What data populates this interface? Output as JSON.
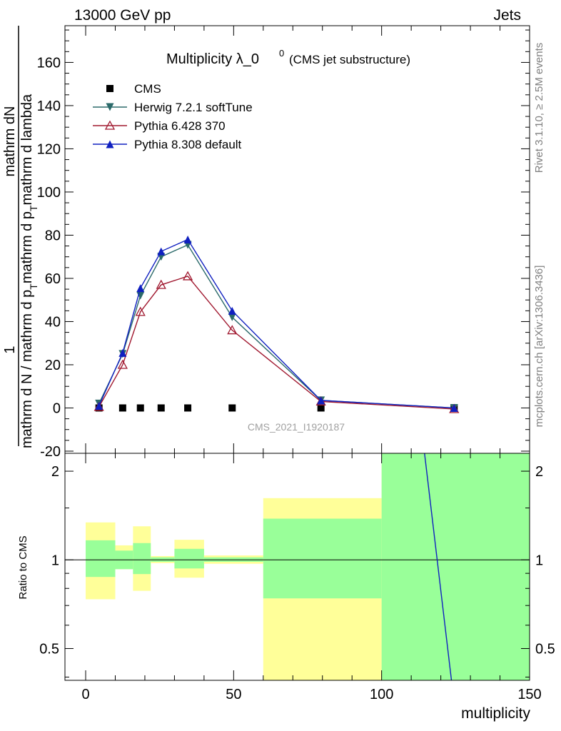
{
  "header": {
    "left": "13000 GeV pp",
    "right": "Jets"
  },
  "side_labels": {
    "rivet": "Rivet 3.1.10, ≥ 2.5M events",
    "mcplots": "mcplots.cern.ch [arXiv:1306.3436]"
  },
  "chart_data": [
    {
      "type": "line",
      "title_main": "Multiplicity λ_0",
      "title_sup": "0",
      "title_sub": "(CMS jet substructure)",
      "ylabel": "1 / mathrm d N / mathrm d p_T mathrm d p_T mathrm d lambda  mathrm dN",
      "ylabel_parts": {
        "numerator_left": "1",
        "numerator_right": "mathrm dN",
        "denominator": "mathrm d N / mathrm d p",
        "denominator_sub": "T",
        "denominator_2": "mathrm d p",
        "denominator_2_sub": "T",
        "denominator_3": "mathrm d lambda"
      },
      "xlabel": "",
      "xlim": [
        -7,
        150
      ],
      "ylim": [
        -21,
        177
      ],
      "yticks": [
        -20,
        0,
        20,
        40,
        60,
        80,
        100,
        120,
        140,
        160
      ],
      "watermark": "CMS_2021_I1920187",
      "series": [
        {
          "name": "CMS",
          "color": "#000000",
          "marker": "square",
          "x": [
            4.5,
            12.5,
            18.5,
            25.5,
            34.5,
            49.5,
            79.5,
            124.5
          ],
          "y": [
            0,
            0,
            0,
            0,
            0,
            0,
            0,
            0
          ]
        },
        {
          "name": "Herwig 7.2.1 softTune",
          "color": "#2b6a6a",
          "marker": "triangle-down",
          "x": [
            4.5,
            12.5,
            18.5,
            25.5,
            34.5,
            49.5,
            79.5,
            124.5
          ],
          "y": [
            2,
            25,
            52,
            70,
            75.5,
            42,
            3.5,
            0
          ]
        },
        {
          "name": "Pythia 6.428 370",
          "color": "#a0182f",
          "marker": "triangle-up-open",
          "x": [
            4.5,
            12.5,
            18.5,
            25.5,
            34.5,
            49.5,
            79.5,
            124.5
          ],
          "y": [
            0.5,
            20,
            44.5,
            57,
            61,
            36,
            3,
            -0.5
          ]
        },
        {
          "name": "Pythia 8.308 default",
          "color": "#1020c0",
          "marker": "triangle-up",
          "x": [
            4.5,
            12.5,
            18.5,
            25.5,
            34.5,
            49.5,
            79.5,
            124.5
          ],
          "y": [
            1,
            25.5,
            55.5,
            72.5,
            78,
            45,
            3.5,
            0
          ]
        }
      ]
    },
    {
      "type": "area",
      "ylabel": "Ratio to CMS",
      "xlabel": "multiplicity",
      "xlim": [
        -7,
        150
      ],
      "ylim": [
        0.39,
        2.3
      ],
      "yscale": "log",
      "yticks": [
        0.5,
        1,
        2
      ],
      "ytick_labels": [
        "0.5",
        "1",
        "2"
      ],
      "xticks": [
        0,
        50,
        100,
        150
      ],
      "xtick_labels": [
        "0",
        "50",
        "100",
        "150"
      ],
      "bands": [
        {
          "x0": 0,
          "x1": 10,
          "green": [
            0.875,
            1.165
          ],
          "yellow": [
            0.735,
            1.34
          ]
        },
        {
          "x0": 10,
          "x1": 16,
          "green": [
            0.93,
            1.075
          ],
          "yellow": [
            0.93,
            1.12
          ]
        },
        {
          "x0": 16,
          "x1": 22,
          "green": [
            0.895,
            1.14
          ],
          "yellow": [
            0.785,
            1.3
          ]
        },
        {
          "x0": 22,
          "x1": 30,
          "green": [
            0.985,
            1.02
          ],
          "yellow": [
            0.975,
            1.03
          ]
        },
        {
          "x0": 30,
          "x1": 40,
          "green": [
            0.935,
            1.09
          ],
          "yellow": [
            0.87,
            1.17
          ]
        },
        {
          "x0": 40,
          "x1": 60,
          "green": [
            0.985,
            1.02
          ],
          "yellow": [
            0.97,
            1.035
          ]
        },
        {
          "x0": 60,
          "x1": 100,
          "green": [
            0.74,
            1.38
          ],
          "yellow": [
            0.39,
            1.62
          ]
        },
        {
          "x0": 100,
          "x1": 150,
          "green": [
            0.39,
            2.3
          ],
          "yellow": [
            0.39,
            2.3
          ]
        }
      ],
      "lines": [
        {
          "name": "Pythia 8.308 default",
          "color": "#1020c0",
          "x": [
            114.5,
            123.6
          ],
          "y": [
            2.3,
            0.39
          ]
        }
      ]
    }
  ]
}
